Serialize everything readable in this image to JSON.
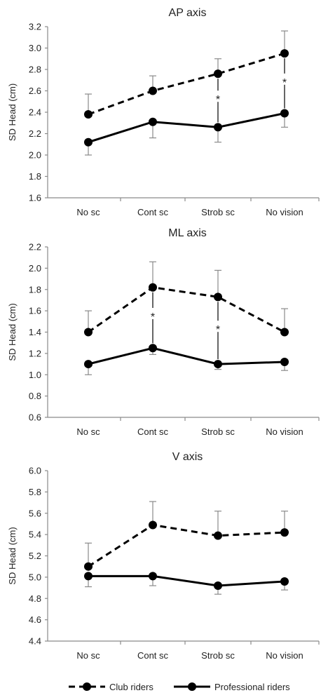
{
  "chart_data": [
    {
      "type": "line",
      "title": "AP axis",
      "ylabel": "SD Head (cm)",
      "xlabel": "",
      "categories": [
        "No sc",
        "Cont sc",
        "Strob sc",
        "No vision"
      ],
      "ylim": [
        1.6,
        3.2
      ],
      "yticks": [
        "1.6",
        "1.8",
        "2.0",
        "2.2",
        "2.4",
        "2.6",
        "2.8",
        "3.0",
        "3.2"
      ],
      "grid": false,
      "series": [
        {
          "name": "Club riders",
          "style": "dashed",
          "values": [
            2.38,
            2.6,
            2.76,
            2.95
          ],
          "error_upper": [
            2.57,
            2.74,
            2.9,
            3.16
          ],
          "error_lower": [
            null,
            null,
            null,
            null
          ]
        },
        {
          "name": "Professional riders",
          "style": "solid",
          "values": [
            2.12,
            2.31,
            2.26,
            2.39
          ],
          "error_upper": [
            null,
            null,
            null,
            null
          ],
          "error_lower": [
            2.0,
            2.16,
            2.12,
            2.26
          ]
        }
      ],
      "significance": [
        {
          "category": "Strob sc",
          "label": "*"
        },
        {
          "category": "No vision",
          "label": "*"
        }
      ]
    },
    {
      "type": "line",
      "title": "ML axis",
      "ylabel": "SD Head (cm)",
      "xlabel": "",
      "categories": [
        "No sc",
        "Cont sc",
        "Strob sc",
        "No vision"
      ],
      "ylim": [
        0.6,
        2.2
      ],
      "yticks": [
        "0.6",
        "0.8",
        "1.0",
        "1.2",
        "1.4",
        "1.6",
        "1.8",
        "2.0",
        "2.2"
      ],
      "grid": false,
      "series": [
        {
          "name": "Club riders",
          "style": "dashed",
          "values": [
            1.4,
            1.82,
            1.73,
            1.4
          ],
          "error_upper": [
            1.6,
            2.06,
            1.98,
            1.62
          ],
          "error_lower": [
            null,
            null,
            null,
            null
          ]
        },
        {
          "name": "Professional riders",
          "style": "solid",
          "values": [
            1.1,
            1.25,
            1.1,
            1.12
          ],
          "error_upper": [
            null,
            null,
            null,
            null
          ],
          "error_lower": [
            1.0,
            1.19,
            1.05,
            1.04
          ]
        }
      ],
      "significance": [
        {
          "category": "Cont sc",
          "label": "*"
        },
        {
          "category": "Strob sc",
          "label": "*"
        }
      ]
    },
    {
      "type": "line",
      "title": "V axis",
      "ylabel": "SD Head (cm)",
      "xlabel": "",
      "categories": [
        "No sc",
        "Cont sc",
        "Strob sc",
        "No vision"
      ],
      "ylim": [
        4.4,
        6.0
      ],
      "yticks": [
        "4.4",
        "4.6",
        "4.8",
        "5.0",
        "5.2",
        "5.4",
        "5.6",
        "5.8",
        "6.0"
      ],
      "grid": false,
      "series": [
        {
          "name": "Club riders",
          "style": "dashed",
          "values": [
            5.1,
            5.49,
            5.39,
            5.42
          ],
          "error_upper": [
            5.32,
            5.71,
            5.62,
            5.62
          ],
          "error_lower": [
            null,
            null,
            null,
            null
          ]
        },
        {
          "name": "Professional riders",
          "style": "solid",
          "values": [
            5.01,
            5.01,
            4.92,
            4.96
          ],
          "error_upper": [
            null,
            null,
            null,
            null
          ],
          "error_lower": [
            4.91,
            4.92,
            4.84,
            4.88
          ]
        }
      ],
      "significance": []
    }
  ],
  "legend": {
    "placement": "bottom",
    "items": [
      {
        "label": "Club riders",
        "style": "dashed"
      },
      {
        "label": "Professional riders",
        "style": "solid"
      }
    ]
  }
}
